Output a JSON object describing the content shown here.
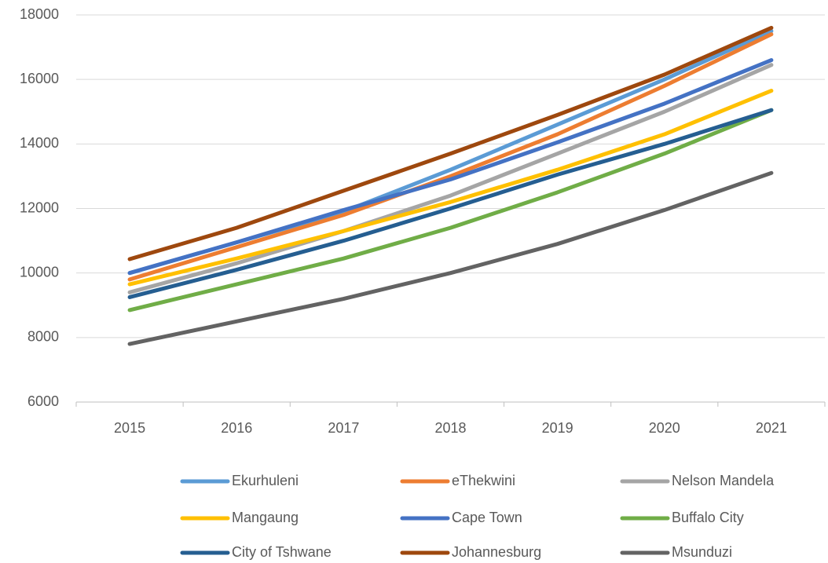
{
  "chart_data": {
    "type": "line",
    "categories": [
      "2015",
      "2016",
      "2017",
      "2018",
      "2019",
      "2020",
      "2021"
    ],
    "series": [
      {
        "name": "Ekurhuleni",
        "color": "#5b9bd5",
        "values": [
          10000,
          10950,
          11900,
          13200,
          14600,
          16000,
          17500
        ]
      },
      {
        "name": "eThekwini",
        "color": "#ed7d31",
        "values": [
          9800,
          10800,
          11800,
          13000,
          14300,
          15800,
          17400
        ]
      },
      {
        "name": "Nelson Mandela",
        "color": "#a5a5a5",
        "values": [
          9400,
          10300,
          11300,
          12400,
          13700,
          15000,
          16450
        ]
      },
      {
        "name": "Mangaung",
        "color": "#ffc000",
        "values": [
          9650,
          10450,
          11300,
          12200,
          13200,
          14300,
          15650
        ]
      },
      {
        "name": "Cape Town",
        "color": "#4472c4",
        "values": [
          10000,
          10950,
          11950,
          12900,
          14050,
          15250,
          16600
        ]
      },
      {
        "name": "Buffalo City",
        "color": "#70ad47",
        "values": [
          8850,
          9650,
          10450,
          11400,
          12500,
          13700,
          15050
        ]
      },
      {
        "name": "City of Tshwane",
        "color": "#255e91",
        "values": [
          9250,
          10100,
          11000,
          12000,
          13050,
          14000,
          15050
        ]
      },
      {
        "name": "Johannesburg",
        "color": "#9e480e",
        "values": [
          10430,
          11400,
          12550,
          13700,
          14900,
          16150,
          17600
        ]
      },
      {
        "name": "Msunduzi",
        "color": "#636363",
        "values": [
          7800,
          8500,
          9200,
          10000,
          10900,
          11950,
          13100
        ]
      }
    ],
    "ylim": [
      6000,
      18000
    ],
    "yticks": [
      6000,
      8000,
      10000,
      12000,
      14000,
      16000,
      18000
    ],
    "grid": true,
    "legend": "bottom"
  }
}
